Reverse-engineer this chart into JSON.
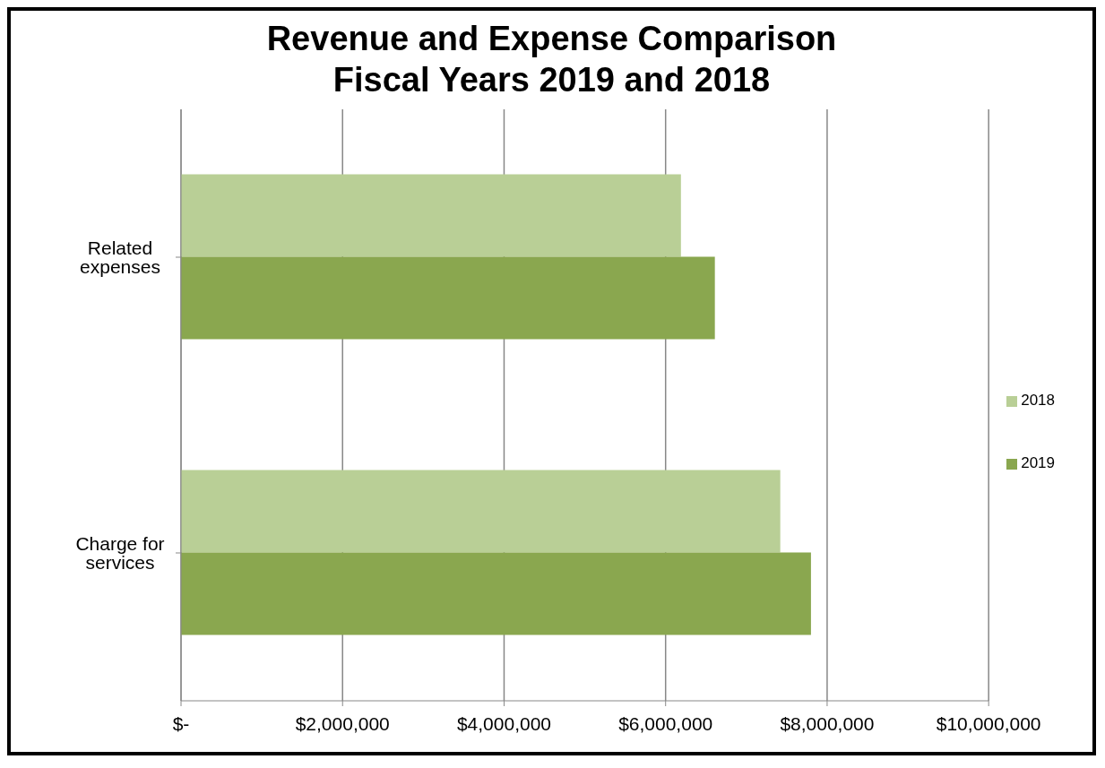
{
  "chart_data": {
    "type": "bar",
    "orientation": "horizontal",
    "title": "Revenue and Expense Comparison",
    "subtitle": "Fiscal Years 2019 and 2018",
    "categories": [
      "Related expenses",
      "Charge for services"
    ],
    "series": [
      {
        "name": "2018",
        "color": "#b9cf96",
        "values": [
          6190000,
          7420000
        ]
      },
      {
        "name": "2019",
        "color": "#8aa74f",
        "values": [
          6610000,
          7800000
        ]
      }
    ],
    "xlim": [
      0,
      10000000
    ],
    "xticks": [
      {
        "value": 0,
        "label": "$-"
      },
      {
        "value": 2000000,
        "label": "$2,000,000"
      },
      {
        "value": 4000000,
        "label": "$4,000,000"
      },
      {
        "value": 6000000,
        "label": "$6,000,000"
      },
      {
        "value": 8000000,
        "label": "$8,000,000"
      },
      {
        "value": 10000000,
        "label": "$10,000,000"
      }
    ],
    "grid": "x",
    "legend": "right"
  }
}
